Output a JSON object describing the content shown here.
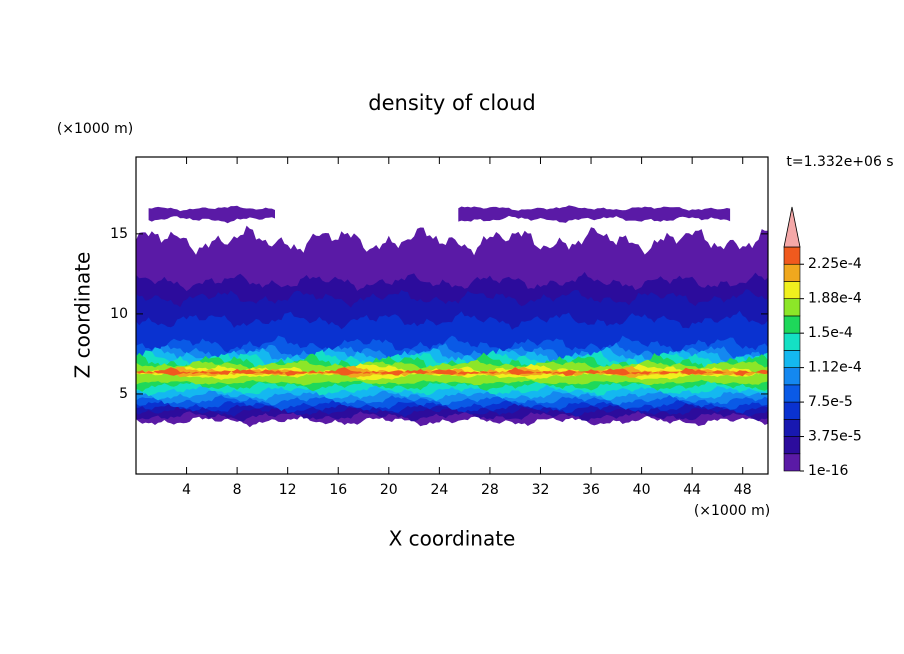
{
  "chart_data": {
    "type": "contour",
    "title": "density of cloud",
    "x_label": "X coordinate",
    "y_label": "Z coordinate",
    "x_unit": "(×1000 m)",
    "y_unit": "(×1000 m)",
    "annotation": "t=1.332e+06 s",
    "xlim": [
      0,
      50
    ],
    "xticks": [
      4,
      8,
      12,
      16,
      20,
      24,
      28,
      32,
      36,
      40,
      44,
      48
    ],
    "ylim": [
      0,
      19.8
    ],
    "yticks": [
      5,
      10,
      15
    ],
    "levels": [
      1e-16,
      1.875e-05,
      3.75e-05,
      5.625e-05,
      7.5e-05,
      9.375e-05,
      0.0001125,
      0.00013125,
      0.00015,
      0.00016875,
      0.0001875,
      0.00020625,
      0.000225,
      0.00024375
    ],
    "level_labels": [
      "1e-16",
      null,
      "3.75e-5",
      null,
      "7.5e-5",
      null,
      "1.12e-4",
      null,
      "1.5e-4",
      null,
      "1.88e-4",
      null,
      "2.25e-4",
      null
    ],
    "colors": [
      "#5a1aa6",
      "#2c0c9c",
      "#1818b0",
      "#0a32d0",
      "#0a5ae6",
      "#1488f0",
      "#14b8f0",
      "#14e0c4",
      "#1ed85a",
      "#8ce628",
      "#f0f01e",
      "#f0a81e",
      "#f05a1e"
    ],
    "extend_color": "#f4a8a8"
  }
}
